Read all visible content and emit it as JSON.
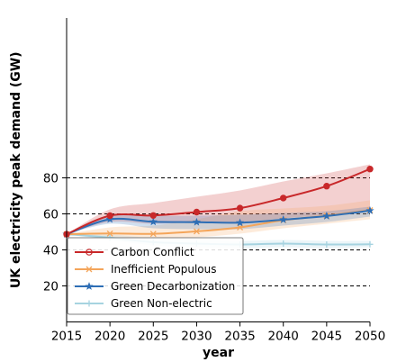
{
  "chart_data": {
    "type": "line",
    "xlabel": "year",
    "ylabel": "UK electricity peak demand (GW)",
    "xlim": [
      2015,
      2050
    ],
    "ylim": [
      0,
      90
    ],
    "x_ticks": [
      2015,
      2020,
      2025,
      2030,
      2035,
      2040,
      2045,
      2050
    ],
    "y_ticks": [
      20,
      40,
      60,
      80
    ],
    "grid": "dashed horizontal lines at y ticks",
    "legend_position": "lower-left",
    "series": [
      {
        "name": "Carbon Conflict",
        "color": "#c8282a",
        "marker": "circle",
        "x": [
          2015,
          2020,
          2025,
          2030,
          2035,
          2040,
          2045,
          2050
        ],
        "values": [
          48.7,
          59.0,
          59.1,
          61.0,
          63.2,
          68.8,
          75.4,
          84.9
        ],
        "band_lower": [
          48.7,
          55.5,
          54.5,
          55.5,
          55.5,
          57.5,
          59.5,
          61.5
        ],
        "band_upper": [
          48.7,
          62.5,
          66.0,
          69.5,
          73.0,
          78.0,
          82.5,
          87.5
        ]
      },
      {
        "name": "Inefficient Populous",
        "color": "#f4a55a",
        "marker": "x",
        "x": [
          2015,
          2020,
          2025,
          2030,
          2035,
          2040,
          2045,
          2050
        ],
        "values": [
          48.7,
          49.1,
          48.9,
          50.3,
          52.5,
          56.5,
          59.0,
          62.0
        ],
        "band_lower": [
          48.7,
          46.5,
          46.0,
          47.0,
          49.0,
          52.0,
          54.5,
          57.0
        ],
        "band_upper": [
          48.7,
          52.5,
          53.5,
          57.0,
          61.5,
          63.0,
          64.5,
          67.5
        ]
      },
      {
        "name": "Green Decarbonization",
        "color": "#2e6eb5",
        "marker": "star",
        "x": [
          2015,
          2020,
          2025,
          2030,
          2035,
          2040,
          2045,
          2050
        ],
        "values": [
          48.7,
          57.0,
          55.6,
          55.4,
          55.1,
          56.8,
          58.8,
          61.8
        ],
        "band_lower": [
          48.7,
          54.5,
          52.0,
          51.5,
          51.5,
          53.5,
          55.5,
          58.5
        ],
        "band_upper": [
          48.7,
          59.5,
          59.0,
          59.0,
          59.5,
          60.5,
          61.5,
          64.0
        ]
      },
      {
        "name": "Green Non-electric",
        "color": "#a6d3e0",
        "marker": "plus",
        "x": [
          2015,
          2020,
          2025,
          2030,
          2035,
          2040,
          2045,
          2050
        ],
        "values": [
          48.7,
          46.8,
          44.3,
          43.5,
          43.0,
          43.5,
          43.0,
          43.1
        ],
        "band_lower": [
          48.7,
          45.5,
          42.5,
          41.5,
          41.0,
          41.5,
          41.0,
          41.5
        ],
        "band_upper": [
          48.7,
          48.5,
          46.5,
          45.5,
          45.0,
          45.5,
          45.0,
          45.0
        ]
      }
    ]
  }
}
